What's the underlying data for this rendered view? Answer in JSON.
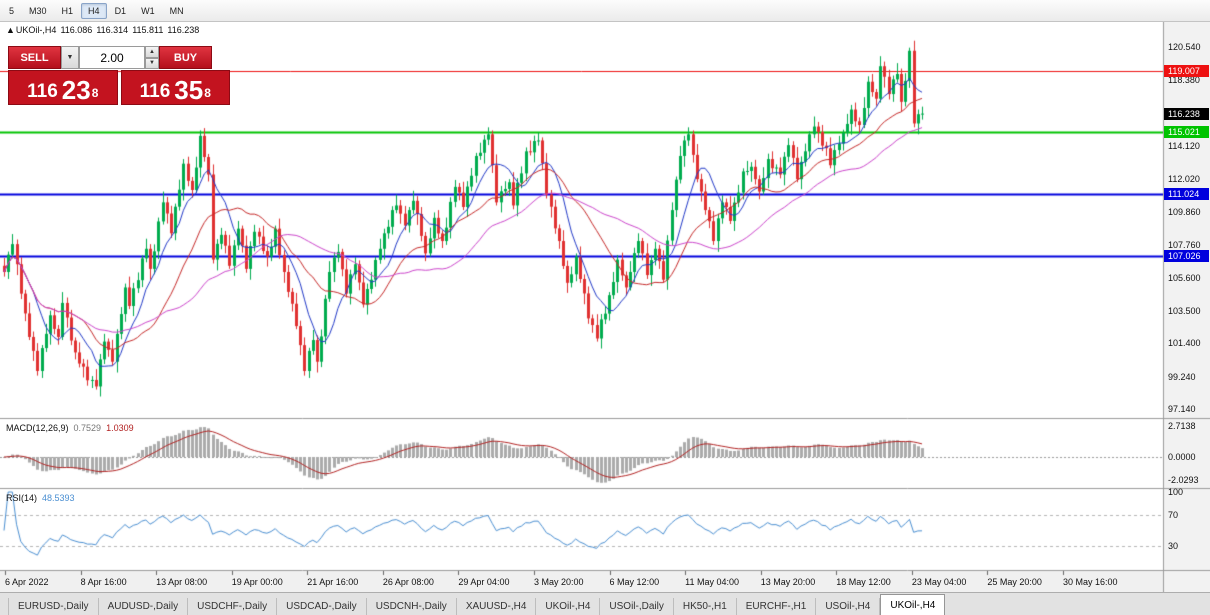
{
  "toolbar": {
    "timeframes": [
      "5",
      "M30",
      "H1",
      "H4",
      "D1",
      "W1",
      "MN"
    ],
    "active": "H4"
  },
  "icons": {
    "dropdown": "▼",
    "spin_up": "▲",
    "spin_down": "▼"
  },
  "chart": {
    "marker": "▲",
    "title": "UKOil-,H4",
    "ohlc": {
      "open": "116.086",
      "high": "116.314",
      "low": "115.811",
      "close": "116.238"
    }
  },
  "trade_panel": {
    "sell_label": "SELL",
    "buy_label": "BUY",
    "lot": "2.00",
    "bid": {
      "prefix": "116",
      "big": "23",
      "sup": "8"
    },
    "ask": {
      "prefix": "116",
      "big": "35",
      "sup": "8"
    }
  },
  "price_axis": {
    "ticks": [
      "120.540",
      "118.380",
      "116.220",
      "114.120",
      "112.020",
      "109.860",
      "107.760",
      "105.600",
      "103.500",
      "101.400",
      "99.240",
      "97.140"
    ],
    "hlines": [
      {
        "price": 119.007,
        "label": "119.007",
        "color": "#EE1111",
        "line_width": 1
      },
      {
        "price": 115.021,
        "label": "115.021",
        "color": "#00C400",
        "line_width": 2
      },
      {
        "price": 111.024,
        "label": "111.024",
        "color": "#0000DD",
        "line_width": 2
      },
      {
        "price": 107.026,
        "label": "107.026",
        "color": "#0000DD",
        "line_width": 2
      }
    ],
    "current": {
      "price": 116.238,
      "label": "116.238",
      "bg": "#000000"
    }
  },
  "macd": {
    "name": "MACD(12,26,9)",
    "value_main": "0.7529",
    "value_signal": "1.0309",
    "fast": 12,
    "slow": 26,
    "signal": 9,
    "axis": [
      {
        "v": 2.7138,
        "label": "2.7138"
      },
      {
        "v": 0,
        "label": "0.0000"
      },
      {
        "v": -2.0293,
        "label": "-2.0293"
      }
    ]
  },
  "rsi": {
    "name": "RSI(14)",
    "value": "48.5393",
    "period": 14,
    "levels": [
      70,
      30
    ],
    "axis": [
      {
        "v": 100,
        "label": "100"
      },
      {
        "v": 70,
        "label": "70"
      },
      {
        "v": 30,
        "label": "30"
      }
    ]
  },
  "time_axis": {
    "labels": [
      "6 Apr 2022",
      "8 Apr 16:00",
      "13 Apr 08:00",
      "19 Apr 00:00",
      "21 Apr 16:00",
      "26 Apr 08:00",
      "29 Apr 04:00",
      "3 May 20:00",
      "6 May 12:00",
      "11 May 04:00",
      "13 May 20:00",
      "18 May 12:00",
      "23 May 04:00",
      "25 May 20:00",
      "30 May 16:00"
    ]
  },
  "tabs": {
    "items": [
      "EURUSD-,Daily",
      "AUDUSD-,Daily",
      "USDCHF-,Daily",
      "USDCAD-,Daily",
      "USDCNH-,Daily",
      "XAUUSD-,H4",
      "UKOil-,H4",
      "USOil-,Daily",
      "HK50-,H1",
      "EURCHF-,H1",
      "USOil-,H4",
      "UKOil-,H4"
    ],
    "active_index": 11
  },
  "colors": {
    "up": "#00AC4E",
    "down": "#E03131",
    "ma_fast": "#2038C8",
    "ma_mid": "#C62828",
    "ma_slow": "#CC44CC",
    "macd_hist": "#ABABAB",
    "macd_signal": "#B22222",
    "rsi_line": "#4A8FD2",
    "plot_bg": "#FFFFFF",
    "axis_bg": "#F2F2F2",
    "time_bg": "#F0F0F0",
    "value_main": "#777777",
    "value_signal": "#B22222",
    "value_rsi": "#4A8FD2"
  },
  "chart_data": {
    "type": "candlestick",
    "symbol": "UKOil-",
    "timeframe": "H4",
    "price_min": 96.69,
    "price_max": 122.03,
    "n_candles": 221,
    "turning_points": [
      [
        0,
        106.0
      ],
      [
        2,
        107.8
      ],
      [
        4,
        104.6
      ],
      [
        6,
        101.8
      ],
      [
        8,
        99.6
      ],
      [
        11,
        103.2
      ],
      [
        13,
        101.8
      ],
      [
        14,
        104.0
      ],
      [
        17,
        100.8
      ],
      [
        20,
        99.0
      ],
      [
        22,
        98.6
      ],
      [
        24,
        101.5
      ],
      [
        26,
        100.2
      ],
      [
        29,
        105.0
      ],
      [
        30,
        103.8
      ],
      [
        34,
        107.5
      ],
      [
        35,
        106.2
      ],
      [
        38,
        110.5
      ],
      [
        40,
        108.5
      ],
      [
        43,
        113.0
      ],
      [
        45,
        111.3
      ],
      [
        47,
        114.8
      ],
      [
        49,
        112.3
      ],
      [
        50,
        106.8
      ],
      [
        52,
        108.4
      ],
      [
        54,
        106.4
      ],
      [
        56,
        108.8
      ],
      [
        58,
        106.2
      ],
      [
        60,
        108.6
      ],
      [
        63,
        107.0
      ],
      [
        65,
        108.8
      ],
      [
        67,
        106.0
      ],
      [
        70,
        102.5
      ],
      [
        72,
        99.6
      ],
      [
        74,
        101.6
      ],
      [
        75,
        100.2
      ],
      [
        78,
        106.0
      ],
      [
        80,
        107.3
      ],
      [
        82,
        104.6
      ],
      [
        84,
        106.5
      ],
      [
        86,
        103.9
      ],
      [
        88,
        105.5
      ],
      [
        91,
        108.5
      ],
      [
        94,
        110.3
      ],
      [
        96,
        109.0
      ],
      [
        98,
        110.6
      ],
      [
        101,
        107.2
      ],
      [
        103,
        109.5
      ],
      [
        105,
        108.0
      ],
      [
        108,
        111.5
      ],
      [
        110,
        110.2
      ],
      [
        113,
        113.5
      ],
      [
        116,
        114.9
      ],
      [
        118,
        110.5
      ],
      [
        121,
        111.8
      ],
      [
        122,
        110.3
      ],
      [
        125,
        113.8
      ],
      [
        128,
        114.5
      ],
      [
        130,
        111.0
      ],
      [
        133,
        108.0
      ],
      [
        135,
        105.3
      ],
      [
        137,
        107.0
      ],
      [
        140,
        103.0
      ],
      [
        142,
        101.7
      ],
      [
        145,
        104.5
      ],
      [
        147,
        106.8
      ],
      [
        149,
        105.0
      ],
      [
        152,
        108.0
      ],
      [
        154,
        105.8
      ],
      [
        156,
        107.5
      ],
      [
        158,
        105.5
      ],
      [
        160,
        110.0
      ],
      [
        162,
        113.5
      ],
      [
        164,
        114.9
      ],
      [
        166,
        112.0
      ],
      [
        168,
        110.0
      ],
      [
        170,
        108.0
      ],
      [
        172,
        110.5
      ],
      [
        174,
        109.3
      ],
      [
        177,
        112.5
      ],
      [
        179,
        112.8
      ],
      [
        181,
        111.2
      ],
      [
        183,
        113.3
      ],
      [
        186,
        112.3
      ],
      [
        188,
        114.2
      ],
      [
        190,
        112.0
      ],
      [
        192,
        113.8
      ],
      [
        194,
        115.4
      ],
      [
        197,
        114.0
      ],
      [
        198,
        112.9
      ],
      [
        201,
        115.0
      ],
      [
        203,
        116.5
      ],
      [
        205,
        115.5
      ],
      [
        207,
        118.3
      ],
      [
        209,
        117.2
      ],
      [
        210,
        119.3
      ],
      [
        212,
        117.5
      ],
      [
        214,
        118.8
      ],
      [
        215,
        117.0
      ],
      [
        217,
        120.3
      ],
      [
        218,
        115.6
      ],
      [
        220,
        116.238
      ]
    ],
    "noise_pattern": [
      0,
      0.22,
      -0.18,
      0.3,
      -0.26,
      0.12,
      -0.3,
      0.2,
      -0.12,
      0.28
    ],
    "wick_pattern": [
      0.5,
      0.2,
      0.65,
      0.3,
      0.45,
      0.25,
      0.7,
      0.35
    ],
    "moving_averages": [
      {
        "period": 8,
        "color": "#2038C8"
      },
      {
        "period": 20,
        "color": "#C62828"
      },
      {
        "period": 40,
        "color": "#CC44CC"
      }
    ]
  }
}
